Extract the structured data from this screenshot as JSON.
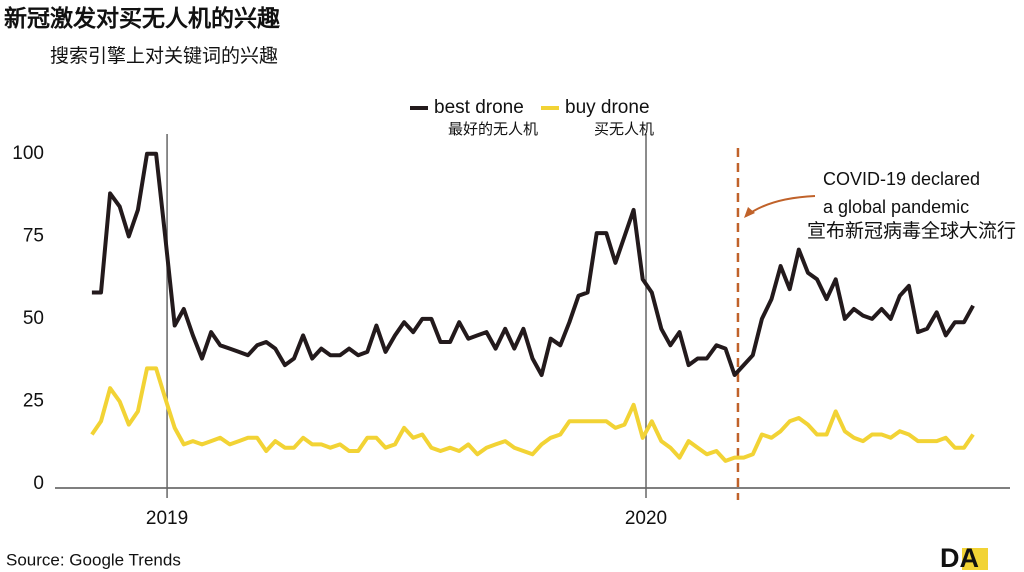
{
  "chart_data": {
    "type": "line",
    "title": "新冠激发对买无人机的兴趣",
    "subtitle": "搜索引擎上对关键词的兴趣",
    "source": "Source: Google Trends",
    "logo": "DA",
    "x": [
      2018.843,
      2018.862,
      2018.881,
      2018.901,
      2018.92,
      2018.939,
      2018.958,
      2018.977,
      2018.996,
      2019.016,
      2019.035,
      2019.054,
      2019.073,
      2019.092,
      2019.111,
      2019.131,
      2019.15,
      2019.169,
      2019.188,
      2019.207,
      2019.226,
      2019.246,
      2019.265,
      2019.284,
      2019.303,
      2019.322,
      2019.341,
      2019.361,
      2019.38,
      2019.399,
      2019.418,
      2019.437,
      2019.456,
      2019.476,
      2019.495,
      2019.514,
      2019.533,
      2019.552,
      2019.571,
      2019.591,
      2019.61,
      2019.629,
      2019.648,
      2019.667,
      2019.686,
      2019.706,
      2019.725,
      2019.744,
      2019.763,
      2019.782,
      2019.801,
      2019.821,
      2019.84,
      2019.859,
      2019.878,
      2019.897,
      2019.917,
      2019.936,
      2019.955,
      2019.974,
      2019.993,
      2020.012,
      2020.032,
      2020.051,
      2020.07,
      2020.089,
      2020.108,
      2020.127,
      2020.147,
      2020.166,
      2020.185,
      2020.204,
      2020.223,
      2020.242,
      2020.262,
      2020.281,
      2020.3,
      2020.319,
      2020.338,
      2020.357,
      2020.377,
      2020.396,
      2020.415,
      2020.434,
      2020.453,
      2020.472,
      2020.492,
      2020.511,
      2020.53,
      2020.549,
      2020.568,
      2020.587,
      2020.607,
      2020.626,
      2020.645,
      2020.664,
      2020.683
    ],
    "series": [
      {
        "name": "best drone",
        "name_zh": "最好的无人机",
        "color": "#231a1c",
        "values": [
          58,
          58,
          88,
          84,
          75,
          83,
          100,
          100,
          75,
          48,
          53,
          45,
          38,
          46,
          42,
          41,
          40,
          39,
          42,
          43,
          41,
          36,
          38,
          45,
          38,
          41,
          39,
          39,
          41,
          39,
          40,
          48,
          40,
          45,
          49,
          46,
          50,
          50,
          43,
          43,
          49,
          44,
          45,
          46,
          41,
          47,
          41,
          47,
          38,
          33,
          44,
          42,
          49,
          57,
          58,
          76,
          76,
          67,
          75,
          83,
          62,
          58,
          47,
          42,
          46,
          36,
          38,
          38,
          42,
          41,
          33,
          36,
          39,
          50,
          56,
          66,
          59,
          71,
          64,
          62,
          56,
          62,
          50,
          53,
          51,
          50,
          53,
          50,
          57,
          60,
          46,
          47,
          52,
          45,
          49,
          49,
          54
        ]
      },
      {
        "name": "buy drone",
        "name_zh": "买无人机",
        "color": "#f2d335",
        "values": [
          15,
          19,
          29,
          25,
          18,
          22,
          35,
          35,
          26,
          17,
          12,
          13,
          12,
          13,
          14,
          12,
          13,
          14,
          14,
          10,
          13,
          11,
          11,
          14,
          12,
          12,
          11,
          12,
          10,
          10,
          14,
          14,
          11,
          12,
          17,
          14,
          15,
          11,
          10,
          11,
          10,
          12,
          9,
          11,
          12,
          13,
          11,
          10,
          9,
          12,
          14,
          15,
          19,
          19,
          19,
          19,
          19,
          17,
          18,
          24,
          14,
          19,
          13,
          11,
          8,
          13,
          11,
          9,
          10,
          7,
          8,
          8,
          9,
          15,
          14,
          16,
          19,
          20,
          18,
          15,
          15,
          22,
          16,
          14,
          13,
          15,
          15,
          14,
          16,
          15,
          13,
          13,
          13,
          14,
          11,
          11,
          15
        ]
      }
    ],
    "xlim": [
      2018.766,
      2020.76
    ],
    "xticks": [
      2019,
      2020
    ],
    "ylim": [
      0,
      106
    ],
    "yticks": [
      0,
      25,
      50,
      75,
      100
    ],
    "year_lines": true,
    "event": {
      "x": 2020.192,
      "color": "#c0622a",
      "label": [
        "COVID-19 declared",
        "a global pandemic"
      ],
      "label_zh": "宣布新冠病毒全球大流行"
    }
  }
}
